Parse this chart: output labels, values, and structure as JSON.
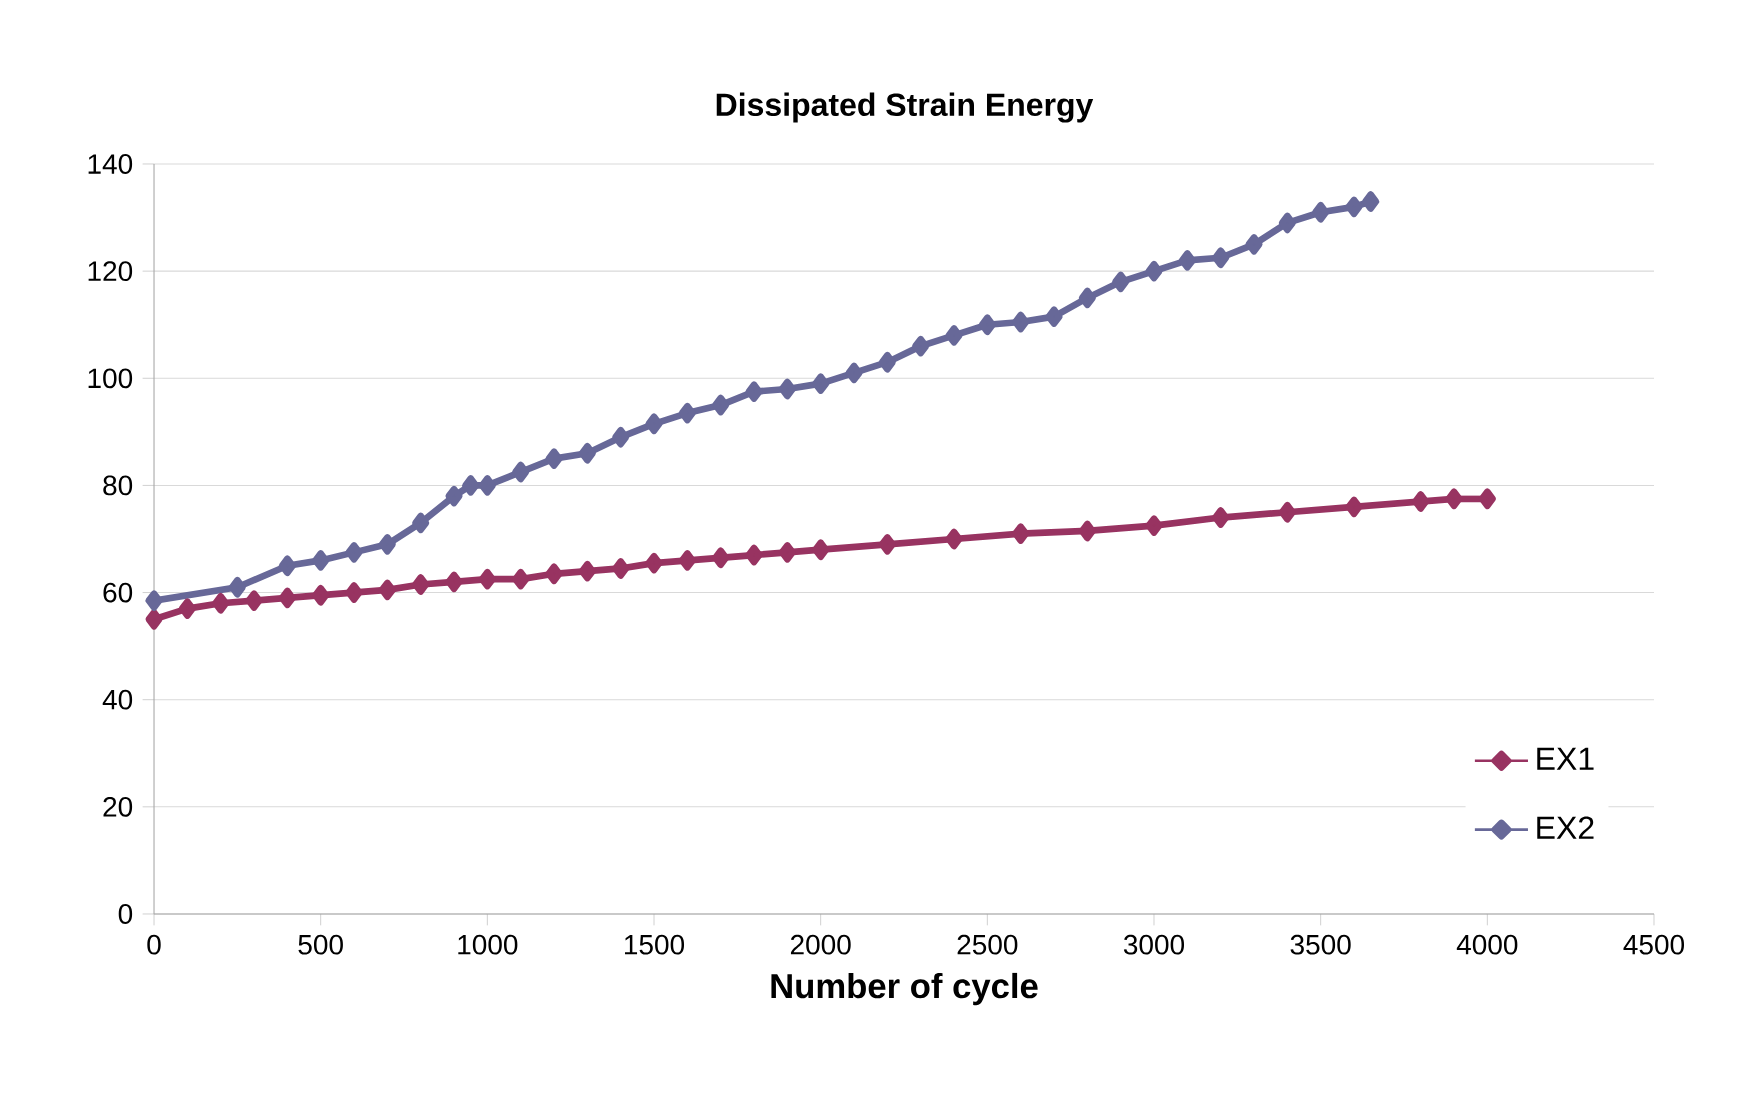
{
  "chart_data": {
    "type": "line",
    "title": "Dissipated Strain Energy",
    "xlabel": "Number of cycle",
    "xlim": [
      0,
      4500
    ],
    "xticks": [
      0,
      500,
      1000,
      1500,
      2000,
      2500,
      3000,
      3500,
      4000,
      4500
    ],
    "ylim": [
      0,
      140
    ],
    "yticks": [
      0,
      20,
      40,
      60,
      80,
      100,
      120,
      140
    ],
    "grid": "y",
    "legend": "bottom right",
    "marker": "diamond",
    "series": [
      {
        "name": "EX1",
        "color": "#983361",
        "x": [
          0,
          100,
          200,
          300,
          400,
          500,
          600,
          700,
          800,
          900,
          1000,
          1100,
          1200,
          1300,
          1400,
          1500,
          1600,
          1700,
          1800,
          1900,
          2000,
          2200,
          2400,
          2600,
          2800,
          3000,
          3200,
          3400,
          3600,
          3800,
          3900,
          4000
        ],
        "values": [
          55,
          57,
          58,
          58.5,
          59,
          59.5,
          60,
          60.5,
          61.5,
          62,
          62.5,
          62.5,
          63.5,
          64,
          64.5,
          65.5,
          66,
          66.5,
          67,
          67.5,
          68,
          69,
          70,
          71,
          71.5,
          72.5,
          74,
          75,
          76,
          77,
          77.5,
          77.5
        ]
      },
      {
        "name": "EX2",
        "color": "#676898",
        "x": [
          0,
          250,
          400,
          500,
          600,
          700,
          800,
          900,
          950,
          1000,
          1100,
          1200,
          1300,
          1400,
          1500,
          1600,
          1700,
          1800,
          1900,
          2000,
          2100,
          2200,
          2300,
          2400,
          2500,
          2600,
          2700,
          2800,
          2900,
          3000,
          3100,
          3200,
          3300,
          3400,
          3500,
          3600,
          3650
        ],
        "values": [
          58.5,
          61,
          65,
          66,
          67.5,
          69,
          73,
          78,
          80,
          80,
          82.5,
          85,
          86,
          89,
          91.5,
          93.5,
          95,
          97.5,
          98,
          99,
          101,
          103,
          106,
          108,
          110,
          110.5,
          111.5,
          115,
          118,
          120,
          122,
          122.5,
          125,
          129,
          131,
          132,
          133
        ]
      }
    ]
  }
}
